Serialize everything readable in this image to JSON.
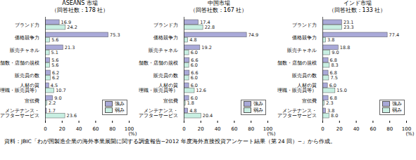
{
  "caption": "資料：JBIC「わが国製造企業の海外事業展開に関する調査報告−2012 年度海外直接投資アンケート結果（第 24 回）−」から作成。",
  "chart_data": [
    {
      "type": "bar",
      "orientation": "horizontal",
      "title": "ASEANS 市場",
      "subtitle": "（回答社数：178 社）",
      "categories": [
        "ブランド力",
        "価格競争力",
        "販売チャネル",
        "店舗数・店舗の規模",
        "販売員の数",
        "人材の質\n（管理職・販売員等）",
        "宣伝費",
        "メンテナンス・\nアフターサービス"
      ],
      "series": [
        {
          "name": "強み",
          "color": "#a9a9d8",
          "values": [
            16.9,
            75.3,
            21.3,
            5.6,
            6.2,
            4.5,
            9.0,
            1.7
          ],
          "value_labels": [
            "16.9",
            "75.3",
            "21.3",
            "5.6",
            "6.2",
            "4.5",
            "9.0",
            "1.7"
          ]
        },
        {
          "name": "弱み",
          "color": "#c8efe2",
          "values": [
            24.2,
            5.6,
            5.1,
            5.6,
            6.2,
            10.7,
            2.2,
            23.6
          ],
          "value_labels": [
            "24.2",
            "5.6",
            "5.1",
            "5.6",
            "6.2",
            "10.7",
            "2.2",
            "23.6"
          ]
        }
      ],
      "xlim": [
        0,
        100
      ],
      "xticks": [
        0,
        20,
        40,
        60,
        80,
        100
      ],
      "xlabel": "(%)",
      "data_labels": true,
      "legend": "bottom-right"
    },
    {
      "type": "bar",
      "orientation": "horizontal",
      "title": "中国市場",
      "subtitle": "（回答社数：167 社）",
      "categories": [
        "ブランド力",
        "価格競争力",
        "販売チャネル",
        "店舗数・店舗の規模",
        "販売員の数",
        "人材の質\n（管理職・販売員等）",
        "宣伝費",
        "メンテナンス・\nアフターサービス"
      ],
      "series": [
        {
          "name": "強み",
          "color": "#a9a9d8",
          "values": [
            17.4,
            74.9,
            19.2,
            6.6,
            6.6,
            6.0,
            6.0,
            4.8
          ],
          "value_labels": [
            "17.4",
            "74.9",
            "19.2",
            "6.6",
            "6.6",
            "6.0",
            "6.0",
            "4.8"
          ]
        },
        {
          "name": "弱み",
          "color": "#c8efe2",
          "values": [
            22.8,
            4.8,
            6.0,
            6.0,
            6.0,
            12.6,
            1.8,
            20.4
          ],
          "value_labels": [
            "22.8",
            "4.8",
            "6.0",
            "6.0",
            "6.0",
            "12.6",
            "1.8",
            "20.4"
          ]
        }
      ],
      "xlim": [
        0,
        100
      ],
      "xticks": [
        0,
        20,
        40,
        60,
        80,
        100
      ],
      "xlabel": "(%)",
      "data_labels": true,
      "legend": "bottom-right"
    },
    {
      "type": "bar",
      "orientation": "horizontal",
      "title": "インド市場",
      "subtitle": "（回答社数：133 社）",
      "categories": [
        "ブランド力",
        "価格競争力",
        "販売チャネル",
        "店舗数・店舗の規模",
        "販売員の数",
        "人材の質\n（管理職・販売員等）",
        "宣伝費",
        "メンテナンス・\nアフターサービス"
      ],
      "series": [
        {
          "name": "強み",
          "color": "#a9a9d8",
          "values": [
            23.1,
            77.4,
            18.8,
            6.8,
            6.8,
            6.0,
            6.8,
            3.8
          ],
          "value_labels": [
            "23.1",
            "77.4",
            "18.8",
            "6.8",
            "6.8",
            "6.0",
            "6.8",
            "3.8"
          ]
        },
        {
          "name": "弱み",
          "color": "#c8efe2",
          "values": [
            23.3,
            3.8,
            9.0,
            8.3,
            7.5,
            15.0,
            2.3,
            8.0
          ],
          "value_labels": [
            "23.3",
            "3.8",
            "9.0",
            "8.3",
            "7.5",
            "15.0",
            "2.3",
            "8.0"
          ]
        }
      ],
      "xlim": [
        0,
        100
      ],
      "xticks": [
        0,
        20,
        40,
        60,
        80,
        100
      ],
      "xlabel": "(%)",
      "data_labels": true,
      "legend": "bottom-right"
    }
  ]
}
